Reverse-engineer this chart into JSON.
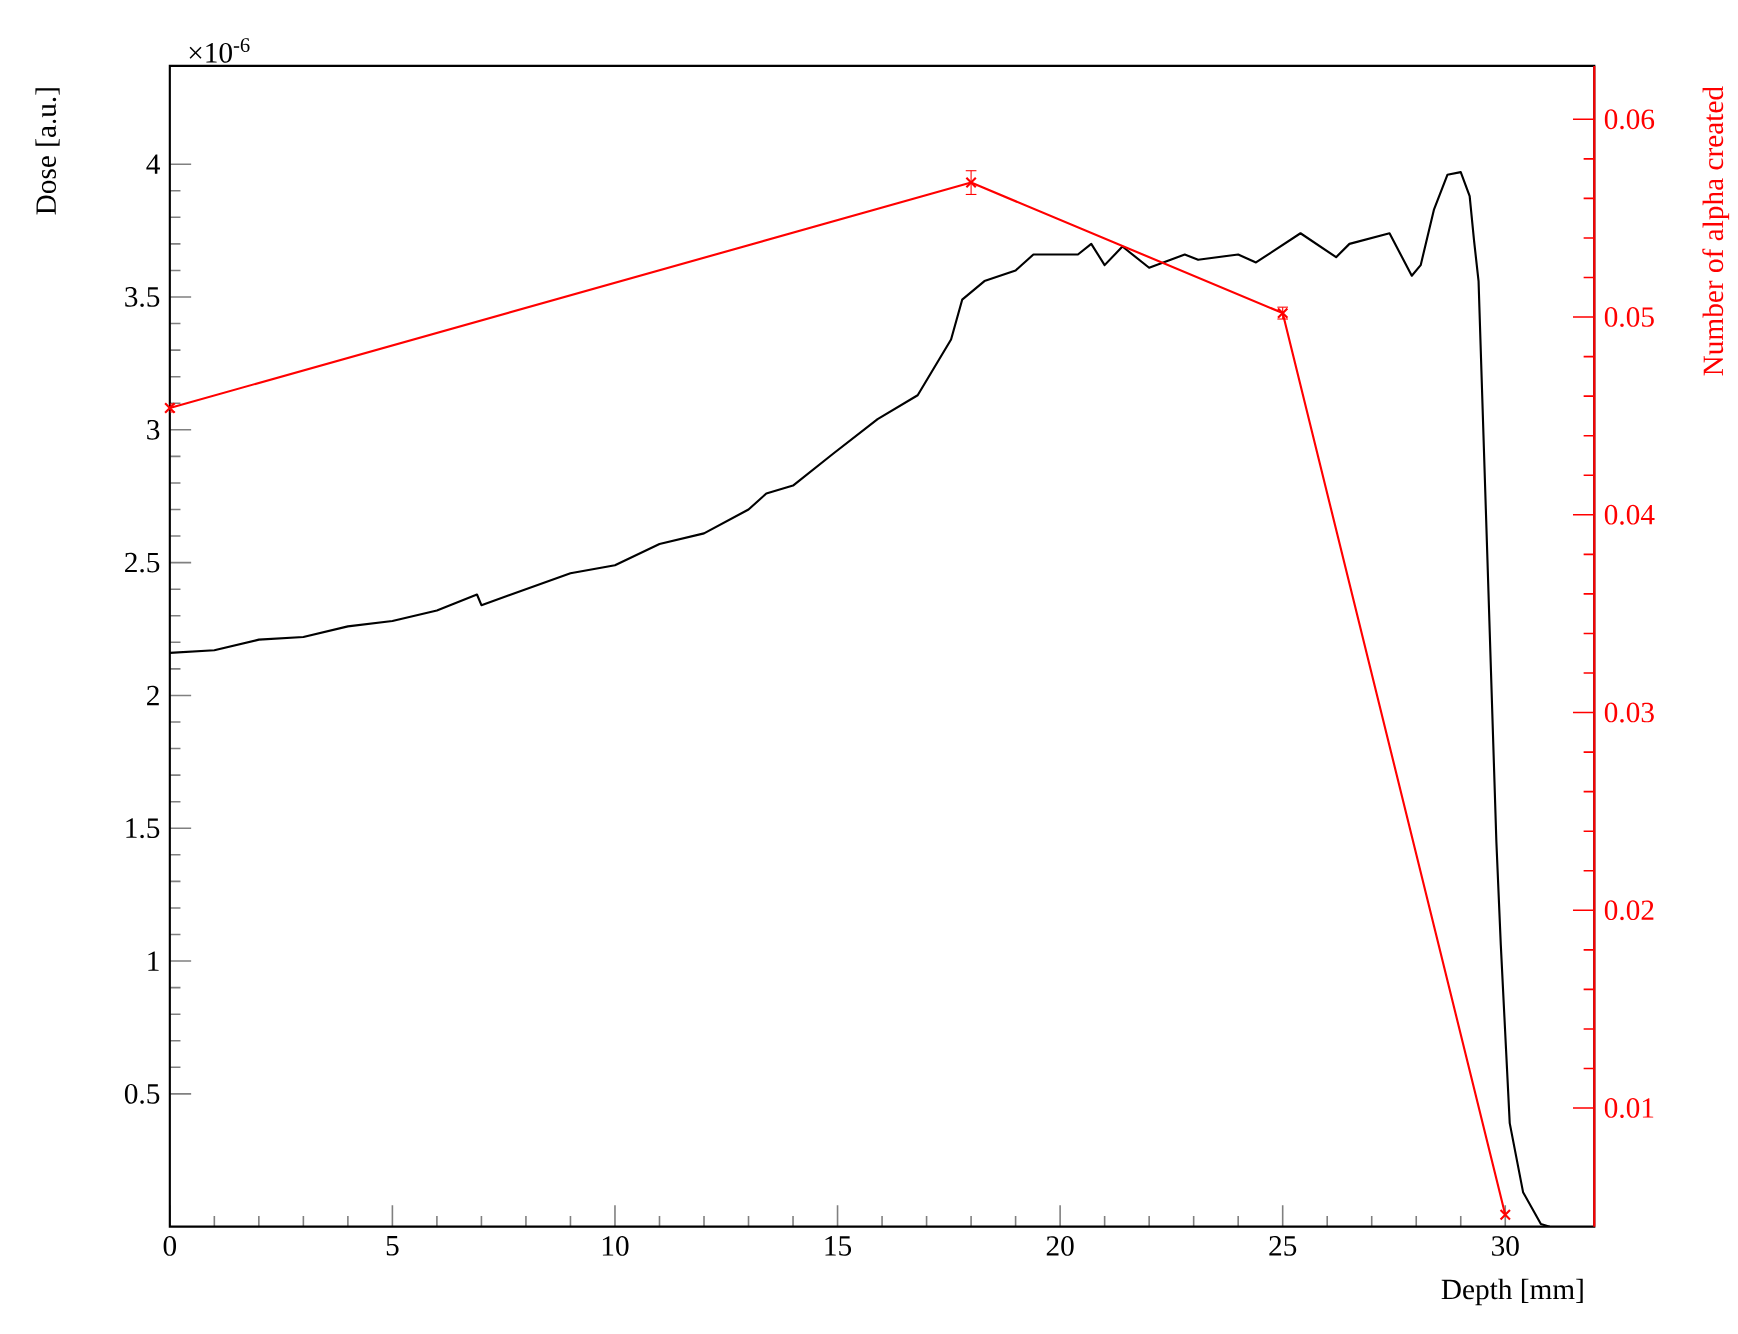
{
  "chart_data": {
    "type": "line",
    "xlabel": "Depth [mm]",
    "ylabel": "Dose [a.u.]",
    "y2label": "Number of alpha created",
    "annotations": [
      "×10$^{-6}$"
    ],
    "xlim": [
      0,
      32
    ],
    "xticks": [
      0,
      5,
      10,
      15,
      20,
      25,
      30
    ],
    "ylim": [
      0,
      4.37
    ],
    "yticks": [
      0.5,
      1,
      1.5,
      2,
      2.5,
      3,
      3.5,
      4
    ],
    "y2lim": [
      0.004,
      0.0627
    ],
    "y2ticks": [
      0.01,
      0.02,
      0.03,
      0.04,
      0.05,
      0.06
    ],
    "series": [
      {
        "color": "#000000",
        "x": [
          0,
          1,
          2,
          3,
          4,
          5,
          6,
          6.9,
          7,
          8,
          9,
          10,
          11,
          12,
          13,
          13.4,
          14,
          14.9,
          15.9,
          16.8,
          17.55,
          17.8,
          18.3,
          19.0,
          19.4,
          20.4,
          20.7,
          21.0,
          21.4,
          22.0,
          22.8,
          23.1,
          24.0,
          24.4,
          25.4,
          26.2,
          26.5,
          27.4,
          27.9,
          28.1,
          28.4,
          28.7,
          29.0,
          29.2,
          29.3,
          29.4,
          29.6,
          29.8,
          29.9,
          30.1,
          30.4,
          30.8,
          31.0
        ],
        "values": [
          2.16,
          2.17,
          2.21,
          2.22,
          2.26,
          2.28,
          2.32,
          2.38,
          2.34,
          2.4,
          2.46,
          2.49,
          2.57,
          2.61,
          2.7,
          2.76,
          2.79,
          2.91,
          3.04,
          3.13,
          3.34,
          3.49,
          3.56,
          3.6,
          3.66,
          3.66,
          3.7,
          3.62,
          3.69,
          3.61,
          3.66,
          3.64,
          3.66,
          3.63,
          3.74,
          3.65,
          3.7,
          3.74,
          3.58,
          3.62,
          3.83,
          3.96,
          3.97,
          3.88,
          3.71,
          3.56,
          2.51,
          1.45,
          1.06,
          0.39,
          0.13,
          0.01,
          0
        ]
      },
      {
        "color": "#ff0000",
        "axis": "y2",
        "marker": "cross",
        "x": [
          0,
          18,
          25,
          30
        ],
        "values": [
          0.0454,
          0.0568,
          0.0502,
          0.0046
        ],
        "errors": [
          0.0002,
          0.0006,
          0.0003,
          null
        ]
      }
    ]
  }
}
